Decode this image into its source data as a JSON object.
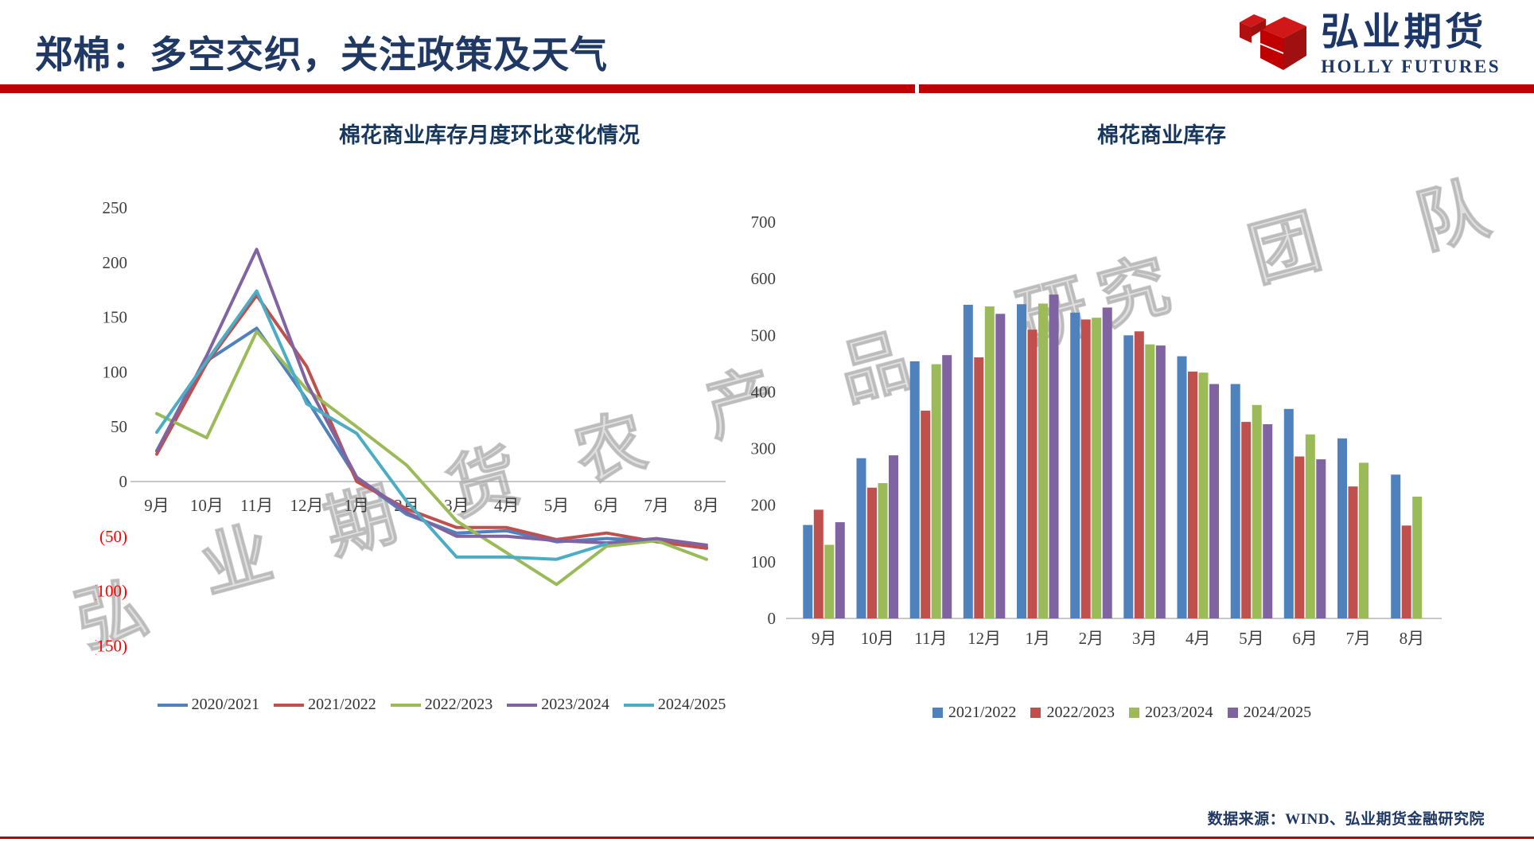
{
  "page": {
    "title": "郑棉：多空交织，关注政策及天气",
    "source_note": "数据来源：WIND、弘业期货金融研究院"
  },
  "logo": {
    "brand_cn": "弘业期货",
    "brand_en": "HOLLY FUTURES"
  },
  "watermark_chars": [
    "弘",
    "业",
    "期",
    "货",
    "农",
    "产",
    "品",
    "研",
    "究",
    "团",
    "队"
  ],
  "colors": {
    "accent_red": "#C00000",
    "title_navy": "#1F3864",
    "chart_title_navy": "#17375E",
    "axis_text": "#3F3F3F",
    "negative_tick": "#FF0000",
    "axis_line": "#A6A6A6"
  },
  "chart_data": [
    {
      "type": "line",
      "title": "棉花商业库存月度环比变化情况",
      "categories": [
        "9月",
        "10月",
        "11月",
        "12月",
        "1月",
        "2月",
        "3月",
        "4月",
        "5月",
        "6月",
        "7月",
        "8月"
      ],
      "ylim": [
        -150,
        250
      ],
      "ytick_step": 50,
      "grid": false,
      "legend_position": "bottom",
      "negative_tick_style": "red_parentheses",
      "series": [
        {
          "name": "2020/2021",
          "color": "#4F81BD",
          "values": [
            28,
            110,
            140,
            75,
            3,
            -30,
            -47,
            -45,
            -55,
            -52,
            -54,
            -60
          ]
        },
        {
          "name": "2021/2022",
          "color": "#C0504D",
          "values": [
            25,
            108,
            170,
            105,
            0,
            -25,
            -42,
            -42,
            -53,
            -47,
            -55,
            -61
          ]
        },
        {
          "name": "2022/2023",
          "color": "#9BBB59",
          "values": [
            62,
            40,
            137,
            84,
            50,
            15,
            -36,
            -65,
            -94,
            -59,
            -54,
            -71
          ]
        },
        {
          "name": "2023/2024",
          "color": "#8064A2",
          "values": [
            28,
            115,
            212,
            90,
            4,
            -28,
            -50,
            -50,
            -54,
            -56,
            -52,
            -58
          ]
        },
        {
          "name": "2024/2025",
          "color": "#4BACC6",
          "values": [
            45,
            110,
            174,
            71,
            44,
            -18,
            -69,
            -69,
            -71,
            -57,
            null,
            null
          ]
        }
      ]
    },
    {
      "type": "bar",
      "title": "棉花商业库存",
      "categories": [
        "9月",
        "10月",
        "11月",
        "12月",
        "1月",
        "2月",
        "3月",
        "4月",
        "5月",
        "6月",
        "7月",
        "8月"
      ],
      "ylim": [
        0,
        700
      ],
      "ytick_step": 100,
      "grid": false,
      "legend_position": "bottom",
      "series": [
        {
          "name": "2021/2022",
          "color": "#4F81BD",
          "values": [
            165,
            283,
            454,
            554,
            555,
            540,
            500,
            463,
            414,
            370,
            318,
            254
          ]
        },
        {
          "name": "2022/2023",
          "color": "#C0504D",
          "values": [
            192,
            231,
            367,
            461,
            510,
            528,
            507,
            436,
            347,
            286,
            233,
            164
          ]
        },
        {
          "name": "2023/2024",
          "color": "#9BBB59",
          "values": [
            130,
            239,
            449,
            551,
            556,
            531,
            484,
            434,
            377,
            325,
            275,
            215
          ]
        },
        {
          "name": "2024/2025",
          "color": "#8064A2",
          "values": [
            170,
            288,
            465,
            538,
            572,
            549,
            482,
            414,
            343,
            281,
            null,
            null
          ]
        }
      ]
    }
  ]
}
